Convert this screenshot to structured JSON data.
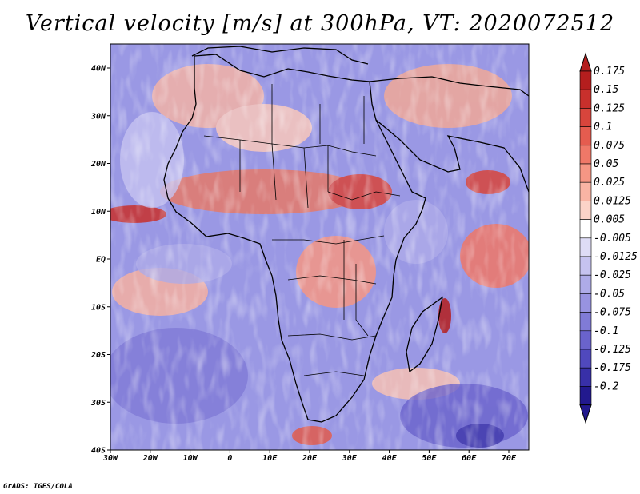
{
  "title": "Vertical velocity [m/s] at 300hPa, VT: 2020072512",
  "credit": "GrADS: IGES/COLA",
  "map": {
    "lon_range": [
      -30,
      75
    ],
    "lat_range": [
      -40,
      45
    ],
    "lat_ticks": [
      "40N",
      "30N",
      "20N",
      "10N",
      "EQ",
      "10S",
      "20S",
      "30S",
      "40S"
    ],
    "lon_ticks": [
      "30W",
      "20W",
      "10W",
      "0",
      "10E",
      "20E",
      "30E",
      "40E",
      "50E",
      "60E",
      "70E"
    ]
  },
  "colorbar": {
    "labels": [
      "0.175",
      "0.15",
      "0.125",
      "0.1",
      "0.075",
      "0.05",
      "0.025",
      "0.0125",
      "0.005",
      "-0.005",
      "-0.0125",
      "-0.025",
      "-0.05",
      "-0.075",
      "-0.1",
      "-0.125",
      "-0.175",
      "-0.2"
    ],
    "colors": [
      "#b41e1e",
      "#c8302c",
      "#d8453c",
      "#e55c4f",
      "#ef7868",
      "#f59684",
      "#f9b4a4",
      "#fcd3c8",
      "#ffffff",
      "#dedcf6",
      "#c6c3f0",
      "#aeabe8",
      "#9893e0",
      "#807bd6",
      "#6a63cc",
      "#5049bd",
      "#3830a8",
      "#22198e"
    ]
  }
}
